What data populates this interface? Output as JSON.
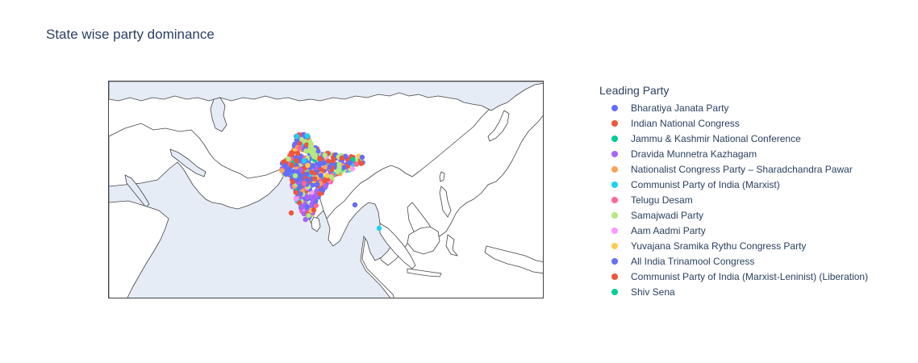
{
  "chart_data": {
    "type": "scatter",
    "title": "State wise party dominance",
    "legend_title": "Leading Party",
    "legend_position": "right",
    "map": "geo scatter over South Asia",
    "series": [
      {
        "name": "Bharatiya Janata Party",
        "color": "#636efa"
      },
      {
        "name": "Indian National Congress",
        "color": "#EF553B"
      },
      {
        "name": "Jammu & Kashmir National Conference",
        "color": "#00cc96"
      },
      {
        "name": "Dravida Munnetra Kazhagam",
        "color": "#ab63fa"
      },
      {
        "name": "Nationalist Congress Party – Sharadchandra Pawar",
        "color": "#FFA15A"
      },
      {
        "name": "Communist Party of India (Marxist)",
        "color": "#19d3f3"
      },
      {
        "name": "Telugu Desam",
        "color": "#FF6692"
      },
      {
        "name": "Samajwadi Party",
        "color": "#B6E880"
      },
      {
        "name": "Aam Aadmi Party",
        "color": "#FF97FF"
      },
      {
        "name": "Yuvajana Sramika Rythu Congress Party",
        "color": "#FECB52"
      },
      {
        "name": "All India Trinamool Congress",
        "color": "#636efa"
      },
      {
        "name": "Communist Party of India (Marxist-Leninist) (Liberation)",
        "color": "#EF553B"
      },
      {
        "name": "Shiv Sena",
        "color": "#00cc96"
      }
    ]
  }
}
